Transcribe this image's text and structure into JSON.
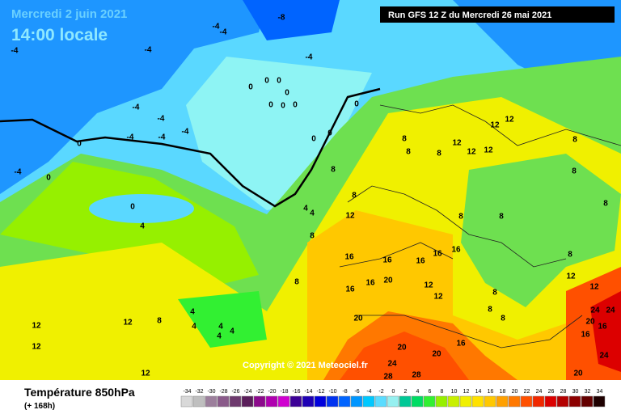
{
  "header": {
    "date": "Mercredi 2 juin 2021",
    "time": "14:00 locale",
    "run": "Run GFS 12 Z du Mercredi 26 mai 2021"
  },
  "copyright": "Copyright © 2021 Meteociel.fr",
  "legend": {
    "title": "Température 850hPa",
    "subtitle": "(+ 168h)",
    "ticks": [
      -34,
      -32,
      -30,
      -28,
      -26,
      -24,
      -22,
      -20,
      -18,
      -16,
      -14,
      -12,
      -10,
      -8,
      -6,
      -4,
      -2,
      0,
      2,
      4,
      6,
      8,
      10,
      12,
      14,
      16,
      18,
      20,
      22,
      24,
      26,
      28,
      30,
      32,
      34
    ],
    "colors": [
      "#d9d9d9",
      "#bfbfbf",
      "#9c7f9c",
      "#8a5a8a",
      "#6e3a6e",
      "#5a1e5a",
      "#8c0a8c",
      "#b000b0",
      "#d000d0",
      "#3c0096",
      "#1e00b4",
      "#0000dc",
      "#0032f0",
      "#0064ff",
      "#0096ff",
      "#00c8ff",
      "#5adcff",
      "#96f0f0",
      "#00c896",
      "#00dc64",
      "#32f032",
      "#96f000",
      "#c8f000",
      "#f0f000",
      "#ffe100",
      "#ffc800",
      "#ffa000",
      "#ff7800",
      "#ff5000",
      "#f02800",
      "#dc0000",
      "#b40000",
      "#8c0000",
      "#640000",
      "#1e0000"
    ]
  },
  "map": {
    "contour_labels": [
      -8,
      -4,
      -4,
      -4,
      -4,
      -4,
      -4,
      -4,
      -4,
      -4,
      -4,
      -4,
      0,
      0,
      0,
      4,
      0,
      0,
      0,
      0,
      0,
      0,
      0,
      0,
      0,
      0,
      8,
      8,
      4,
      4,
      8,
      12,
      16,
      16,
      16,
      16,
      16,
      12,
      12,
      12,
      12,
      12,
      8,
      8,
      8,
      8,
      8,
      8,
      8,
      8,
      8,
      12,
      12,
      8,
      16,
      16,
      20,
      12,
      12,
      8,
      8,
      8,
      24,
      24,
      20,
      16,
      16,
      24,
      20,
      20,
      20,
      24,
      28,
      28,
      16,
      20,
      12,
      8,
      12,
      12,
      4,
      4,
      4,
      4,
      4,
      12
    ]
  }
}
